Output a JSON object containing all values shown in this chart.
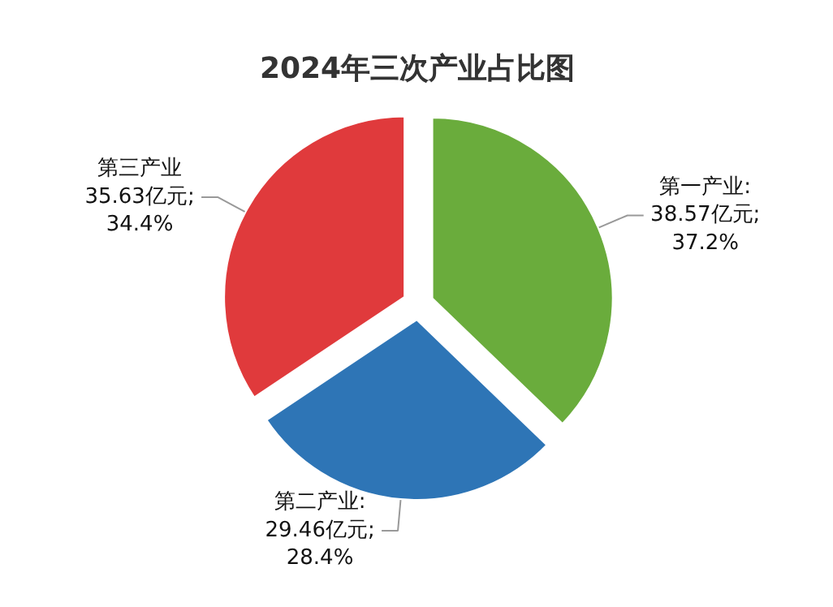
{
  "chart_data": {
    "type": "pie",
    "title": "2024年三次产业占比图",
    "categories": [
      "第一产业",
      "第二产业",
      "第三产业"
    ],
    "values": [
      38.57,
      29.46,
      35.63
    ],
    "value_labels": [
      ":\n38.57亿元;\n37.2%",
      ":\n29.46亿元;\n28.4%",
      "\n35.63亿元;\n34.4%"
    ],
    "colors": [
      "#6aac3c",
      "#2e75b6",
      "#e03a3c"
    ],
    "legend": false
  }
}
